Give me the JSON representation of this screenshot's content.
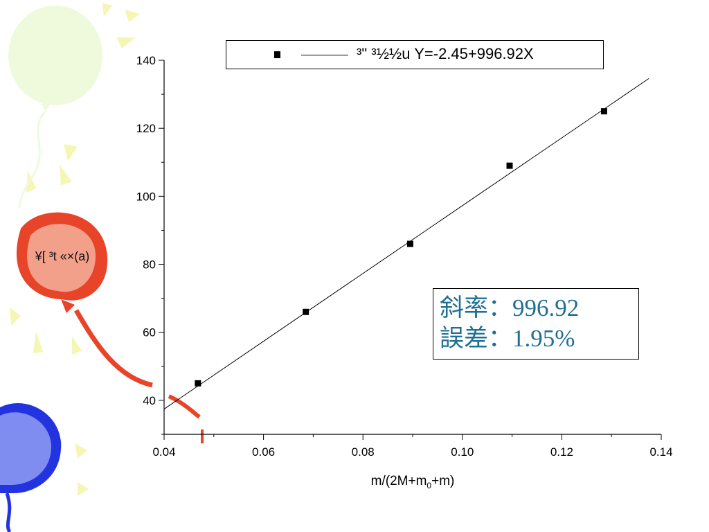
{
  "slide": {
    "balloon_label": "¥[ ³t «×(a)"
  },
  "decor": {
    "balloon_colors": {
      "green": "#eefadb",
      "red": "#e8442a",
      "red_light": "#f2a08a",
      "blue": "#2433e0",
      "blue_light": "#7f8df0",
      "ray": "#f4f7b3"
    }
  },
  "note": {
    "slope_line": "斜率：996.92",
    "error_line": "誤差：1.95%",
    "color": "#1f6f92"
  },
  "chart_data": {
    "type": "scatter",
    "legend": {
      "text": "³\"  ³½½u Y=-2.45+996.92X",
      "placement": "top"
    },
    "xlabel": {
      "prefix": "m/(2M+m",
      "subscript": "0",
      "suffix": "+m)"
    },
    "ylabel": "",
    "xlim": [
      0.04,
      0.14
    ],
    "ylim": [
      30,
      140
    ],
    "xticks": [
      "0.04",
      "0.06",
      "0.08",
      "0.10",
      "0.12",
      "0.14"
    ],
    "yticks": [
      "40",
      "60",
      "80",
      "100",
      "120",
      "140"
    ],
    "grid": false,
    "series": [
      {
        "x": [
          0.0468,
          0.0685,
          0.0895,
          0.1095,
          0.1285
        ],
        "y": [
          45,
          66,
          86,
          109,
          125
        ]
      }
    ],
    "fit": {
      "intercept": -2.45,
      "slope": 996.92,
      "x_range": [
        0.04,
        0.1375
      ]
    }
  }
}
